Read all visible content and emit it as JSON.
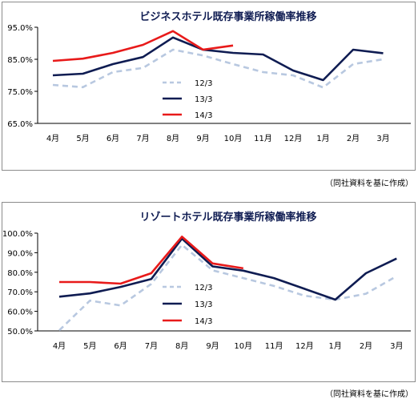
{
  "chart_data": [
    {
      "type": "line",
      "title": "ビジネスホテル既存事業所稼働率推移",
      "categories": [
        "4月",
        "5月",
        "6月",
        "7月",
        "8月",
        "9月",
        "10月",
        "11月",
        "12月",
        "1月",
        "2月",
        "3月"
      ],
      "yticks": [
        "95.0%",
        "85.0%",
        "75.0%",
        "65.0%"
      ],
      "ylim": [
        65,
        95
      ],
      "grid": false,
      "legend_position": "center",
      "series": [
        {
          "name": "12/3",
          "color": "#b8c8e0",
          "dash": true,
          "values": [
            77,
            76.3,
            81,
            82.3,
            88,
            86.2,
            83.5,
            81,
            80,
            76.2,
            83.5,
            85
          ]
        },
        {
          "name": "13/3",
          "color": "#0f1c52",
          "dash": false,
          "values": [
            80,
            80.5,
            83.5,
            85.7,
            91.8,
            88,
            87,
            86.5,
            81.5,
            78.5,
            88,
            86.9
          ]
        },
        {
          "name": "14/3",
          "color": "#e81a1a",
          "dash": false,
          "values": [
            84.5,
            85.2,
            87,
            89.5,
            93.8,
            88,
            89.3,
            null,
            null,
            null,
            null,
            null
          ]
        }
      ],
      "source_note": "（同社資料を基に作成）"
    },
    {
      "type": "line",
      "title": "リゾートホテル既存事業所稼働率推移",
      "categories": [
        "4月",
        "5月",
        "6月",
        "7月",
        "8月",
        "9月",
        "10月",
        "11月",
        "12月",
        "1月",
        "2月",
        "3月"
      ],
      "yticks": [
        "100.0%",
        "90.0%",
        "80.0%",
        "70.0%",
        "60.0%",
        "50.0%"
      ],
      "ylim": [
        50,
        100
      ],
      "grid": false,
      "legend_position": "center",
      "series": [
        {
          "name": "12/3",
          "color": "#b8c8e0",
          "dash": true,
          "values": [
            50.3,
            65.5,
            63,
            74,
            94,
            81,
            77,
            73,
            68,
            66,
            69,
            78
          ]
        },
        {
          "name": "13/3",
          "color": "#0f1c52",
          "dash": false,
          "values": [
            67.5,
            69.2,
            72.5,
            76.5,
            97.2,
            83,
            80.8,
            77,
            71.5,
            66,
            79.5,
            87
          ]
        },
        {
          "name": "14/3",
          "color": "#e81a1a",
          "dash": false,
          "values": [
            75,
            75,
            74.2,
            79.5,
            98.2,
            84.5,
            82,
            null,
            null,
            null,
            null,
            null
          ]
        }
      ],
      "source_note": "（同社資料を基に作成）"
    }
  ]
}
